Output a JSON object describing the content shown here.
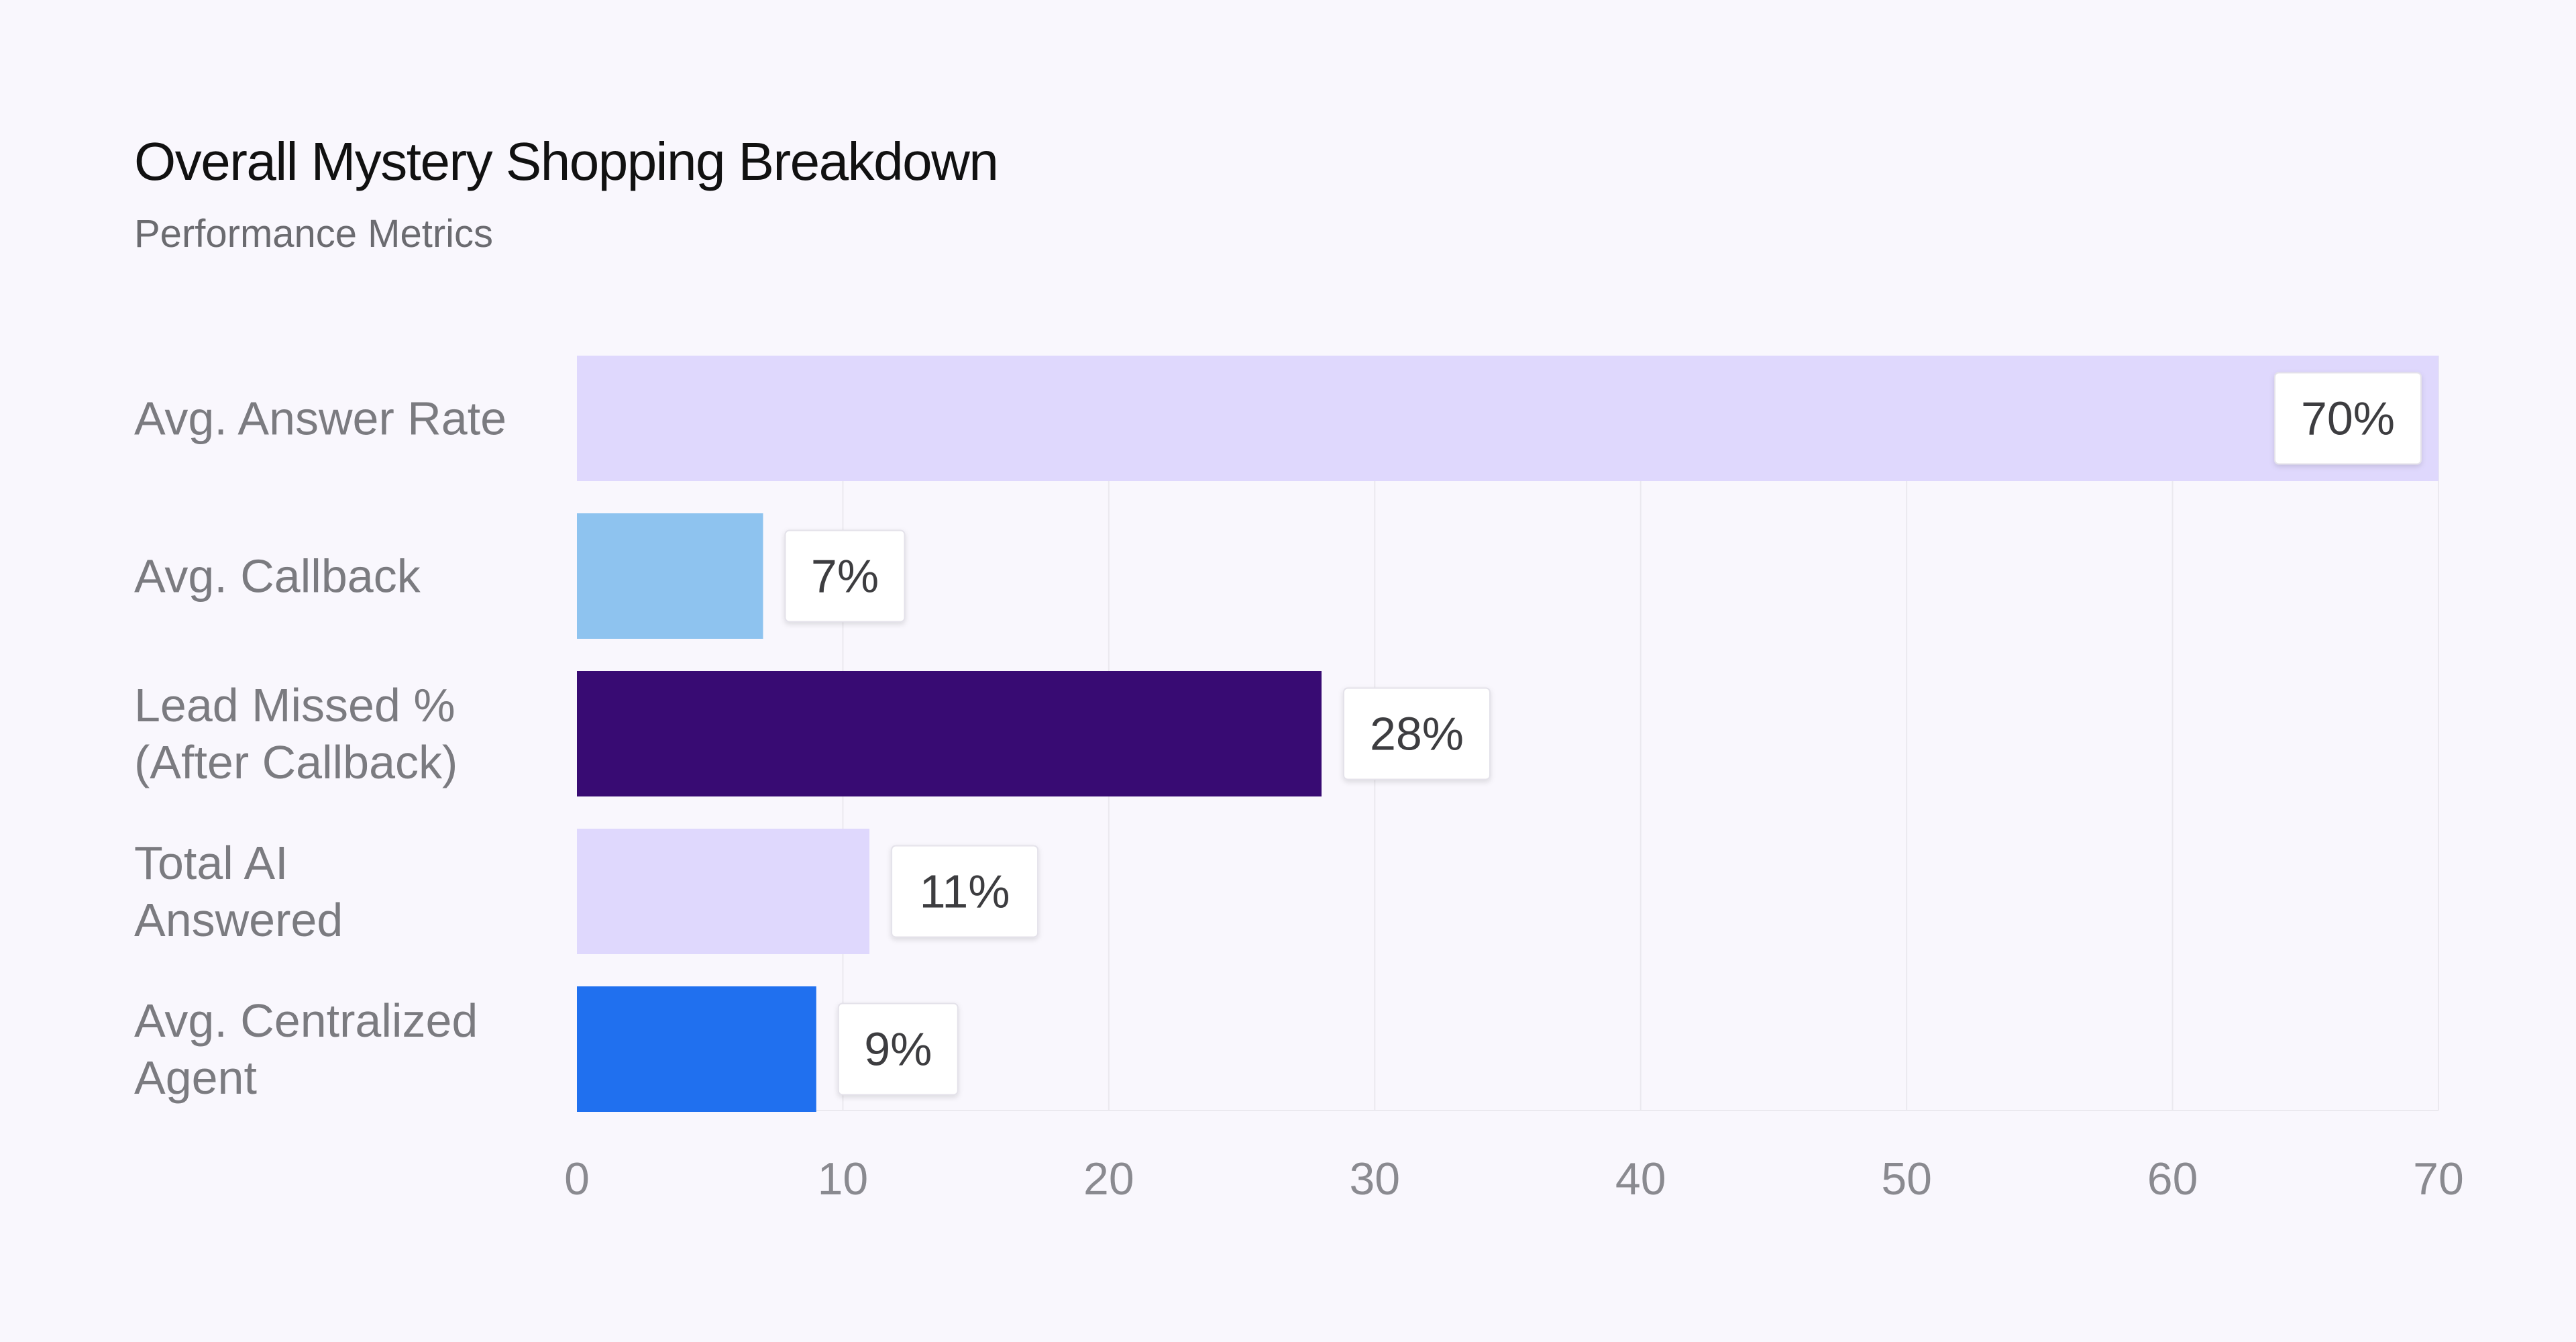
{
  "chart_data": {
    "type": "bar",
    "orientation": "horizontal",
    "title": "Overall Mystery Shopping Breakdown",
    "subtitle": "Performance Metrics",
    "categories": [
      [
        "Avg. Answer Rate"
      ],
      [
        "Avg. Callback"
      ],
      [
        "Lead Missed %",
        "(After Callback)"
      ],
      [
        "Total AI",
        "Answered"
      ],
      [
        "Avg. Centralized",
        "Agent"
      ]
    ],
    "values": [
      70,
      7,
      28,
      11,
      9
    ],
    "value_labels": [
      "70%",
      "7%",
      "28%",
      "11%",
      "9%"
    ],
    "colors": [
      "#dfd8fd",
      "#8ec3ef",
      "#380b73",
      "#dfd8fd",
      "#2070ef"
    ],
    "xlim": [
      0,
      70
    ],
    "xticks": [
      0,
      10,
      20,
      30,
      40,
      50,
      60,
      70
    ],
    "grid": true,
    "legend": "none"
  }
}
